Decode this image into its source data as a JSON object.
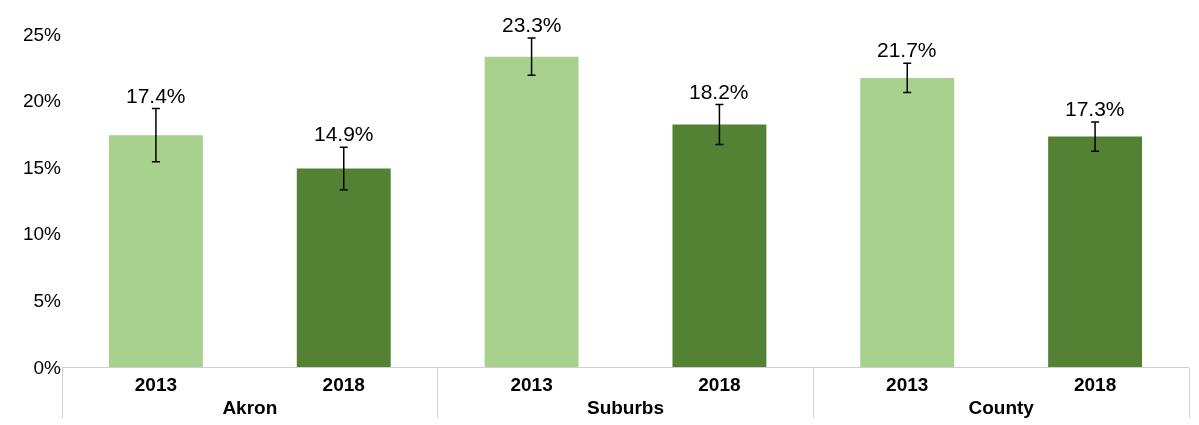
{
  "chart_data": {
    "type": "bar",
    "categories": [
      "Akron",
      "Suburbs",
      "County"
    ],
    "series": [
      {
        "name": "2013",
        "color": "#a9d18e",
        "values": [
          17.4,
          23.3,
          21.7
        ],
        "errors": [
          2.0,
          1.4,
          1.1
        ],
        "value_labels": [
          "17.4%",
          "23.3%",
          "21.7%"
        ]
      },
      {
        "name": "2018",
        "color": "#548235",
        "values": [
          14.9,
          18.2,
          17.3
        ],
        "errors": [
          1.6,
          1.5,
          1.1
        ],
        "value_labels": [
          "14.9%",
          "18.2%",
          "17.3%"
        ]
      }
    ],
    "ylim": [
      0,
      25
    ],
    "yticks": [
      {
        "value": 0,
        "label": "0%"
      },
      {
        "value": 5,
        "label": "5%"
      },
      {
        "value": 10,
        "label": "10%"
      },
      {
        "value": 15,
        "label": "15%"
      },
      {
        "value": 20,
        "label": "20%"
      },
      {
        "value": 25,
        "label": "25%"
      }
    ],
    "grid": false,
    "legend": false
  }
}
